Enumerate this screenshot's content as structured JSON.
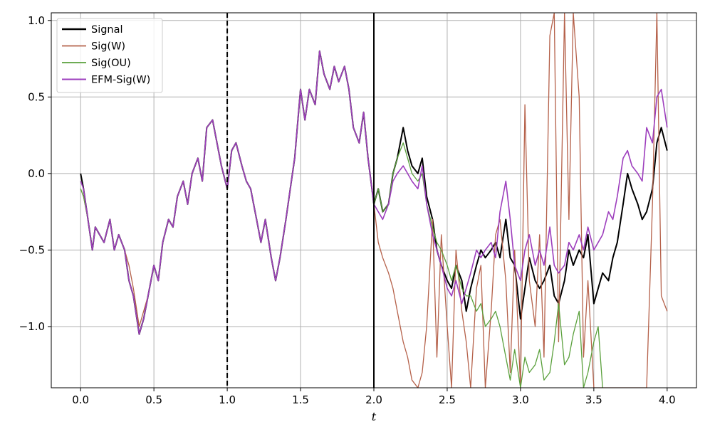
{
  "chart_data": {
    "type": "line",
    "title": "",
    "xlabel": "t",
    "ylabel": "",
    "xlim": [
      -0.2,
      4.2
    ],
    "ylim": [
      -1.4,
      1.05
    ],
    "grid": true,
    "legend_position": "top-left",
    "xticks": [
      0.0,
      0.5,
      1.0,
      1.5,
      2.0,
      2.5,
      3.0,
      3.5,
      4.0
    ],
    "xtick_labels": [
      "0.0",
      "0.5",
      "1.0",
      "1.5",
      "2.0",
      "2.5",
      "3.0",
      "3.5",
      "4.0"
    ],
    "yticks": [
      -1.0,
      -0.5,
      0.0,
      0.5,
      1.0
    ],
    "ytick_labels": [
      "−1.0",
      "−0.5",
      "0.0",
      "0.5",
      "1.0"
    ],
    "vlines": [
      {
        "x": 1.0,
        "style": "dashed",
        "color": "#000000"
      },
      {
        "x": 2.0,
        "style": "solid",
        "color": "#000000"
      }
    ],
    "series": [
      {
        "name": "Signal",
        "color": "#000000",
        "width": 2,
        "x": [
          0.0,
          0.02,
          0.05,
          0.08,
          0.1,
          0.13,
          0.16,
          0.2,
          0.23,
          0.26,
          0.3,
          0.33,
          0.36,
          0.4,
          0.43,
          0.46,
          0.5,
          0.53,
          0.56,
          0.6,
          0.63,
          0.66,
          0.7,
          0.73,
          0.76,
          0.8,
          0.83,
          0.86,
          0.9,
          0.93,
          0.96,
          1.0,
          1.03,
          1.06,
          1.1,
          1.13,
          1.16,
          1.2,
          1.23,
          1.26,
          1.3,
          1.33,
          1.36,
          1.4,
          1.43,
          1.46,
          1.5,
          1.53,
          1.56,
          1.6,
          1.63,
          1.66,
          1.7,
          1.73,
          1.76,
          1.8,
          1.83,
          1.86,
          1.9,
          1.93,
          1.96,
          2.0,
          2.03,
          2.06,
          2.1,
          2.13,
          2.16,
          2.2,
          2.23,
          2.26,
          2.3,
          2.33,
          2.36,
          2.4,
          2.43,
          2.46,
          2.5,
          2.53,
          2.56,
          2.6,
          2.63,
          2.66,
          2.7,
          2.73,
          2.76,
          2.8,
          2.83,
          2.86,
          2.9,
          2.93,
          2.96,
          3.0,
          3.03,
          3.06,
          3.1,
          3.13,
          3.16,
          3.2,
          3.23,
          3.26,
          3.3,
          3.33,
          3.36,
          3.4,
          3.43,
          3.46,
          3.5,
          3.53,
          3.56,
          3.6,
          3.63,
          3.66,
          3.7,
          3.73,
          3.76,
          3.8,
          3.83,
          3.86,
          3.9,
          3.93,
          3.96,
          4.0
        ],
        "y": [
          0.0,
          -0.1,
          -0.3,
          -0.5,
          -0.35,
          -0.4,
          -0.45,
          -0.3,
          -0.5,
          -0.4,
          -0.5,
          -0.7,
          -0.8,
          -1.05,
          -0.95,
          -0.8,
          -0.6,
          -0.7,
          -0.45,
          -0.3,
          -0.35,
          -0.15,
          -0.05,
          -0.2,
          0.0,
          0.1,
          -0.05,
          0.3,
          0.35,
          0.2,
          0.05,
          -0.1,
          0.15,
          0.2,
          0.05,
          -0.05,
          -0.1,
          -0.3,
          -0.45,
          -0.3,
          -0.55,
          -0.7,
          -0.55,
          -0.3,
          -0.1,
          0.1,
          0.55,
          0.35,
          0.55,
          0.45,
          0.8,
          0.65,
          0.55,
          0.7,
          0.6,
          0.7,
          0.55,
          0.3,
          0.2,
          0.4,
          0.1,
          -0.2,
          -0.1,
          -0.25,
          -0.2,
          0.0,
          0.1,
          0.3,
          0.15,
          0.05,
          0.0,
          0.1,
          -0.15,
          -0.3,
          -0.5,
          -0.6,
          -0.7,
          -0.75,
          -0.6,
          -0.7,
          -0.9,
          -0.75,
          -0.6,
          -0.5,
          -0.55,
          -0.5,
          -0.45,
          -0.55,
          -0.3,
          -0.55,
          -0.6,
          -0.95,
          -0.75,
          -0.55,
          -0.7,
          -0.75,
          -0.7,
          -0.6,
          -0.8,
          -0.85,
          -0.7,
          -0.5,
          -0.6,
          -0.5,
          -0.55,
          -0.4,
          -0.85,
          -0.75,
          -0.65,
          -0.7,
          -0.55,
          -0.45,
          -0.2,
          0.0,
          -0.1,
          -0.2,
          -0.3,
          -0.25,
          -0.1,
          0.2,
          0.3,
          0.15
        ]
      },
      {
        "name": "Sig(W)",
        "color": "#b5614a",
        "width": 1.3,
        "x": [
          0.0,
          0.02,
          0.05,
          0.08,
          0.1,
          0.13,
          0.16,
          0.2,
          0.23,
          0.26,
          0.3,
          0.33,
          0.36,
          0.4,
          0.43,
          0.46,
          0.5,
          0.53,
          0.56,
          0.6,
          0.63,
          0.66,
          0.7,
          0.73,
          0.76,
          0.8,
          0.83,
          0.86,
          0.9,
          0.93,
          0.96,
          1.0,
          1.03,
          1.06,
          1.1,
          1.13,
          1.16,
          1.2,
          1.23,
          1.26,
          1.3,
          1.33,
          1.36,
          1.4,
          1.43,
          1.46,
          1.5,
          1.53,
          1.56,
          1.6,
          1.63,
          1.66,
          1.7,
          1.73,
          1.76,
          1.8,
          1.83,
          1.86,
          1.9,
          1.93,
          1.96,
          2.0,
          2.03,
          2.06,
          2.1,
          2.13,
          2.16,
          2.2,
          2.23,
          2.26,
          2.3,
          2.33,
          2.36,
          2.4,
          2.43,
          2.46,
          2.5,
          2.53,
          2.56,
          2.6,
          2.63,
          2.66,
          2.7,
          2.73,
          2.76,
          2.8,
          2.83,
          2.86,
          2.9,
          2.93,
          2.96,
          3.0,
          3.03,
          3.06,
          3.1,
          3.13,
          3.16,
          3.2,
          3.23,
          3.26,
          3.3,
          3.33,
          3.36,
          3.4,
          3.43,
          3.46,
          3.5,
          3.53,
          3.56,
          3.6,
          3.63,
          3.66,
          3.7,
          3.73,
          3.76,
          3.8,
          3.83,
          3.86,
          3.9,
          3.93,
          3.96,
          4.0
        ],
        "y": [
          -0.1,
          -0.15,
          -0.3,
          -0.5,
          -0.35,
          -0.4,
          -0.45,
          -0.3,
          -0.5,
          -0.4,
          -0.5,
          -0.6,
          -0.75,
          -1.0,
          -0.9,
          -0.8,
          -0.6,
          -0.7,
          -0.45,
          -0.3,
          -0.35,
          -0.15,
          -0.05,
          -0.2,
          0.0,
          0.1,
          -0.05,
          0.3,
          0.35,
          0.2,
          0.05,
          -0.1,
          0.15,
          0.2,
          0.05,
          -0.05,
          -0.1,
          -0.3,
          -0.45,
          -0.3,
          -0.55,
          -0.7,
          -0.55,
          -0.3,
          -0.1,
          0.1,
          0.55,
          0.35,
          0.55,
          0.45,
          0.8,
          0.65,
          0.55,
          0.7,
          0.6,
          0.7,
          0.55,
          0.3,
          0.2,
          0.4,
          0.1,
          -0.2,
          -0.45,
          -0.55,
          -0.65,
          -0.75,
          -0.9,
          -1.1,
          -1.2,
          -1.35,
          -1.4,
          -1.3,
          -1.0,
          -0.3,
          -1.2,
          -0.4,
          -1.0,
          -1.4,
          -0.5,
          -0.9,
          -1.1,
          -1.4,
          -0.75,
          -0.6,
          -1.4,
          -0.9,
          -0.4,
          -0.3,
          -0.7,
          -1.3,
          -0.5,
          -1.4,
          0.45,
          -0.7,
          -1.0,
          -0.4,
          -1.2,
          0.9,
          1.05,
          -1.1,
          1.05,
          -0.3,
          1.05,
          0.5,
          -1.2,
          -0.7,
          -1.4,
          -1.4,
          -1.4,
          -1.4,
          -1.4,
          -1.4,
          -1.4,
          -1.4,
          -1.4,
          -1.4,
          -1.4,
          -1.4,
          -0.2,
          1.05,
          -0.8,
          -0.9
        ]
      },
      {
        "name": "Sig(OU)",
        "color": "#5aa03c",
        "width": 1.3,
        "x": [
          0.0,
          0.02,
          0.05,
          0.08,
          0.1,
          0.13,
          0.16,
          0.2,
          0.23,
          0.26,
          0.3,
          0.33,
          0.36,
          0.4,
          0.43,
          0.46,
          0.5,
          0.53,
          0.56,
          0.6,
          0.63,
          0.66,
          0.7,
          0.73,
          0.76,
          0.8,
          0.83,
          0.86,
          0.9,
          0.93,
          0.96,
          1.0,
          1.03,
          1.06,
          1.1,
          1.13,
          1.16,
          1.2,
          1.23,
          1.26,
          1.3,
          1.33,
          1.36,
          1.4,
          1.43,
          1.46,
          1.5,
          1.53,
          1.56,
          1.6,
          1.63,
          1.66,
          1.7,
          1.73,
          1.76,
          1.8,
          1.83,
          1.86,
          1.9,
          1.93,
          1.96,
          2.0,
          2.03,
          2.06,
          2.1,
          2.13,
          2.16,
          2.2,
          2.23,
          2.26,
          2.3,
          2.33,
          2.36,
          2.4,
          2.43,
          2.46,
          2.5,
          2.53,
          2.56,
          2.6,
          2.63,
          2.66,
          2.7,
          2.73,
          2.76,
          2.8,
          2.83,
          2.86,
          2.9,
          2.93,
          2.96,
          3.0,
          3.03,
          3.06,
          3.1,
          3.13,
          3.16,
          3.2,
          3.23,
          3.26,
          3.3,
          3.33,
          3.36,
          3.4,
          3.43,
          3.46,
          3.5,
          3.53,
          3.56
        ],
        "y": [
          -0.1,
          -0.15,
          -0.3,
          -0.5,
          -0.35,
          -0.4,
          -0.45,
          -0.3,
          -0.5,
          -0.4,
          -0.5,
          -0.7,
          -0.8,
          -1.05,
          -0.95,
          -0.8,
          -0.6,
          -0.7,
          -0.45,
          -0.3,
          -0.35,
          -0.15,
          -0.05,
          -0.2,
          0.0,
          0.1,
          -0.05,
          0.3,
          0.35,
          0.2,
          0.05,
          -0.1,
          0.15,
          0.2,
          0.05,
          -0.05,
          -0.1,
          -0.3,
          -0.45,
          -0.3,
          -0.55,
          -0.7,
          -0.55,
          -0.3,
          -0.1,
          0.1,
          0.55,
          0.35,
          0.55,
          0.45,
          0.8,
          0.65,
          0.55,
          0.7,
          0.6,
          0.7,
          0.55,
          0.3,
          0.2,
          0.4,
          0.1,
          -0.2,
          -0.1,
          -0.25,
          -0.2,
          0.0,
          0.1,
          0.2,
          0.1,
          0.0,
          -0.05,
          0.0,
          -0.2,
          -0.35,
          -0.45,
          -0.5,
          -0.6,
          -0.7,
          -0.6,
          -0.75,
          -0.8,
          -0.8,
          -0.9,
          -0.85,
          -1.0,
          -0.95,
          -0.9,
          -1.0,
          -1.2,
          -1.35,
          -1.15,
          -1.4,
          -1.2,
          -1.3,
          -1.25,
          -1.15,
          -1.35,
          -1.3,
          -1.1,
          -0.85,
          -1.25,
          -1.2,
          -1.05,
          -0.9,
          -1.4,
          -1.3,
          -1.1,
          -1.0,
          -1.4
        ]
      },
      {
        "name": "EFM-Sig(W)",
        "color": "#9d3ebd",
        "width": 1.6,
        "x": [
          0.0,
          0.02,
          0.05,
          0.08,
          0.1,
          0.13,
          0.16,
          0.2,
          0.23,
          0.26,
          0.3,
          0.33,
          0.36,
          0.4,
          0.43,
          0.46,
          0.5,
          0.53,
          0.56,
          0.6,
          0.63,
          0.66,
          0.7,
          0.73,
          0.76,
          0.8,
          0.83,
          0.86,
          0.9,
          0.93,
          0.96,
          1.0,
          1.03,
          1.06,
          1.1,
          1.13,
          1.16,
          1.2,
          1.23,
          1.26,
          1.3,
          1.33,
          1.36,
          1.4,
          1.43,
          1.46,
          1.5,
          1.53,
          1.56,
          1.6,
          1.63,
          1.66,
          1.7,
          1.73,
          1.76,
          1.8,
          1.83,
          1.86,
          1.9,
          1.93,
          1.96,
          2.0,
          2.03,
          2.06,
          2.1,
          2.13,
          2.16,
          2.2,
          2.23,
          2.26,
          2.3,
          2.33,
          2.36,
          2.4,
          2.43,
          2.46,
          2.5,
          2.53,
          2.56,
          2.6,
          2.63,
          2.66,
          2.7,
          2.73,
          2.76,
          2.8,
          2.83,
          2.86,
          2.9,
          2.93,
          2.96,
          3.0,
          3.03,
          3.06,
          3.1,
          3.13,
          3.16,
          3.2,
          3.23,
          3.26,
          3.3,
          3.33,
          3.36,
          3.4,
          3.43,
          3.46,
          3.5,
          3.53,
          3.56,
          3.6,
          3.63,
          3.66,
          3.7,
          3.73,
          3.76,
          3.8,
          3.83,
          3.86,
          3.9,
          3.93,
          3.96,
          4.0
        ],
        "y": [
          -0.05,
          -0.1,
          -0.3,
          -0.5,
          -0.35,
          -0.4,
          -0.45,
          -0.3,
          -0.5,
          -0.4,
          -0.5,
          -0.7,
          -0.8,
          -1.05,
          -0.95,
          -0.8,
          -0.6,
          -0.7,
          -0.45,
          -0.3,
          -0.35,
          -0.15,
          -0.05,
          -0.2,
          0.0,
          0.1,
          -0.05,
          0.3,
          0.35,
          0.2,
          0.05,
          -0.1,
          0.15,
          0.2,
          0.05,
          -0.05,
          -0.1,
          -0.3,
          -0.45,
          -0.3,
          -0.55,
          -0.7,
          -0.55,
          -0.3,
          -0.1,
          0.1,
          0.55,
          0.35,
          0.55,
          0.45,
          0.8,
          0.65,
          0.55,
          0.7,
          0.6,
          0.7,
          0.55,
          0.3,
          0.2,
          0.4,
          0.1,
          -0.2,
          -0.25,
          -0.3,
          -0.2,
          -0.05,
          0.0,
          0.05,
          0.0,
          -0.05,
          -0.1,
          0.05,
          -0.2,
          -0.4,
          -0.5,
          -0.6,
          -0.75,
          -0.8,
          -0.7,
          -0.85,
          -0.75,
          -0.65,
          -0.5,
          -0.55,
          -0.5,
          -0.45,
          -0.55,
          -0.25,
          -0.05,
          -0.3,
          -0.6,
          -0.7,
          -0.5,
          -0.4,
          -0.6,
          -0.5,
          -0.6,
          -0.35,
          -0.6,
          -0.65,
          -0.6,
          -0.45,
          -0.5,
          -0.4,
          -0.5,
          -0.35,
          -0.5,
          -0.45,
          -0.4,
          -0.25,
          -0.3,
          -0.15,
          0.1,
          0.15,
          0.05,
          0.0,
          -0.05,
          0.3,
          0.2,
          0.5,
          0.55,
          0.3
        ]
      }
    ]
  }
}
